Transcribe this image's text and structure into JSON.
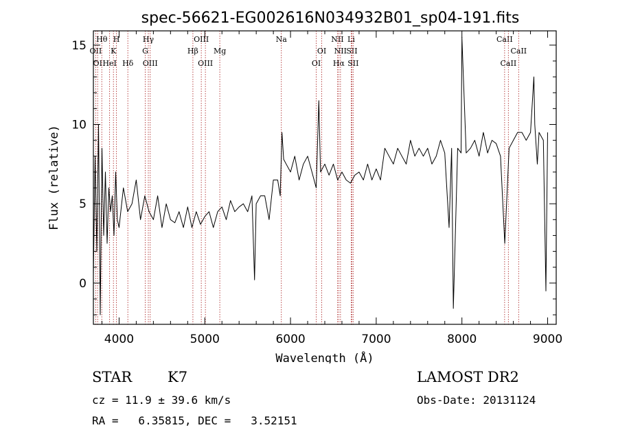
{
  "chart_data": {
    "type": "line",
    "title": "spec-56621-EG002616N034932B01_sp04-191.fits",
    "xlabel": "Wavelength (Å)",
    "ylabel": "Flux (relative)",
    "xlim": [
      3700,
      9100
    ],
    "ylim": [
      -2.6,
      15.9
    ],
    "xticks": [
      4000,
      5000,
      6000,
      7000,
      8000,
      9000
    ],
    "yticks": [
      0,
      5,
      10,
      15
    ],
    "grid": false,
    "series": [
      {
        "x": [
          3700,
          3720,
          3740,
          3760,
          3780,
          3800,
          3820,
          3840,
          3860,
          3880,
          3900,
          3920,
          3940,
          3960,
          3980,
          4000,
          4050,
          4100,
          4150,
          4200,
          4250,
          4300,
          4350,
          4400,
          4450,
          4500,
          4550,
          4600,
          4650,
          4700,
          4750,
          4800,
          4850,
          4900,
          4950,
          5000,
          5050,
          5100,
          5150,
          5200,
          5250,
          5300,
          5350,
          5400,
          5450,
          5500,
          5550,
          5580,
          5600,
          5650,
          5700,
          5750,
          5800,
          5850,
          5880,
          5900,
          5920,
          5950,
          6000,
          6050,
          6100,
          6150,
          6200,
          6250,
          6300,
          6330,
          6350,
          6400,
          6450,
          6500,
          6550,
          6600,
          6650,
          6700,
          6750,
          6800,
          6850,
          6900,
          6950,
          7000,
          7050,
          7100,
          7150,
          7200,
          7250,
          7300,
          7350,
          7400,
          7450,
          7500,
          7550,
          7600,
          7650,
          7700,
          7750,
          7800,
          7850,
          7880,
          7900,
          7950,
          7990,
          8000,
          8050,
          8100,
          8150,
          8200,
          8250,
          8300,
          8350,
          8400,
          8450,
          8500,
          8550,
          8600,
          8650,
          8700,
          8750,
          8800,
          8840,
          8850,
          8880,
          8900,
          8950,
          8980,
          9000
        ],
        "y": [
          0.5,
          8,
          2,
          10,
          -2,
          8.5,
          3,
          7,
          2.5,
          6,
          4.5,
          5.5,
          3,
          7,
          4,
          3.5,
          6,
          4.5,
          5,
          6.5,
          4,
          5.5,
          4.5,
          4,
          5.5,
          3.5,
          5,
          4,
          3.8,
          4.5,
          3.5,
          4.8,
          3.5,
          4.5,
          3.7,
          4.2,
          4.5,
          3.5,
          4.5,
          4.8,
          4,
          5.2,
          4.5,
          4.8,
          5,
          4.5,
          5.5,
          0.2,
          5,
          5.5,
          5.5,
          4,
          6.5,
          6.5,
          5.5,
          9.5,
          7.8,
          7.5,
          7,
          8,
          6.5,
          7.5,
          8,
          7,
          6,
          11.5,
          7,
          7.5,
          6.8,
          7.5,
          6.5,
          7,
          6.5,
          6.3,
          6.8,
          7,
          6.5,
          7.5,
          6.5,
          7.2,
          6.5,
          8.5,
          8,
          7.5,
          8.5,
          8,
          7.5,
          9,
          8,
          8.5,
          8,
          8.5,
          7.5,
          8,
          9,
          8.2,
          3.5,
          8.5,
          -1.6,
          8.5,
          8.2,
          15.5,
          8.2,
          8.5,
          9,
          8,
          9.5,
          8.2,
          9,
          8.8,
          8,
          2.5,
          8.5,
          9,
          9.5,
          9.5,
          9,
          9.5,
          13,
          10,
          7.5,
          9.5,
          9,
          -0.5,
          9.5
        ]
      }
    ],
    "lines": [
      {
        "wavelength": 3727,
        "labels": [
          {
            "text": "OII",
            "row": 2
          }
        ]
      },
      {
        "wavelength": 3750,
        "labels": [
          {
            "text": "OI",
            "row": 3
          }
        ]
      },
      {
        "wavelength": 3798,
        "labels": [
          {
            "text": "Hθ",
            "row": 1
          }
        ]
      },
      {
        "wavelength": 3889,
        "labels": [
          {
            "text": "HeI",
            "row": 3
          }
        ]
      },
      {
        "wavelength": 3934,
        "labels": [
          {
            "text": "K",
            "row": 2
          }
        ]
      },
      {
        "wavelength": 3969,
        "labels": [
          {
            "text": "H",
            "row": 1
          }
        ]
      },
      {
        "wavelength": 4102,
        "labels": [
          {
            "text": "Hδ",
            "row": 3
          }
        ]
      },
      {
        "wavelength": 4305,
        "labels": [
          {
            "text": "G",
            "row": 2
          }
        ]
      },
      {
        "wavelength": 4341,
        "labels": [
          {
            "text": "Hγ",
            "row": 1
          }
        ]
      },
      {
        "wavelength": 4363,
        "labels": [
          {
            "text": "OIII",
            "row": 3
          }
        ]
      },
      {
        "wavelength": 4861,
        "labels": [
          {
            "text": "Hβ",
            "row": 2
          }
        ]
      },
      {
        "wavelength": 4959,
        "labels": [
          {
            "text": "OIII",
            "row": 1
          }
        ]
      },
      {
        "wavelength": 5007,
        "labels": [
          {
            "text": "OIII",
            "row": 3
          }
        ]
      },
      {
        "wavelength": 5175,
        "labels": [
          {
            "text": "Mg",
            "row": 2
          }
        ]
      },
      {
        "wavelength": 5893,
        "labels": [
          {
            "text": "Na",
            "row": 1
          }
        ]
      },
      {
        "wavelength": 6300,
        "labels": [
          {
            "text": "OI",
            "row": 3
          }
        ]
      },
      {
        "wavelength": 6364,
        "labels": [
          {
            "text": "OI",
            "row": 2
          }
        ]
      },
      {
        "wavelength": 6548,
        "labels": [
          {
            "text": "NII",
            "row": 1
          }
        ]
      },
      {
        "wavelength": 6563,
        "labels": [
          {
            "text": "Hα",
            "row": 3
          }
        ]
      },
      {
        "wavelength": 6583,
        "labels": [
          {
            "text": "NII",
            "row": 2
          }
        ]
      },
      {
        "wavelength": 6708,
        "labels": [
          {
            "text": "Li",
            "row": 1
          }
        ]
      },
      {
        "wavelength": 6716,
        "labels": [
          {
            "text": "SII",
            "row": 2
          }
        ]
      },
      {
        "wavelength": 6731,
        "labels": [
          {
            "text": "SII",
            "row": 3
          }
        ]
      },
      {
        "wavelength": 8498,
        "labels": [
          {
            "text": "CaII",
            "row": 1
          }
        ]
      },
      {
        "wavelength": 8542,
        "labels": [
          {
            "text": "CaII",
            "row": 3
          }
        ]
      },
      {
        "wavelength": 8662,
        "labels": [
          {
            "text": "CaII",
            "row": 2
          }
        ]
      }
    ]
  },
  "info": {
    "object_class": "STAR",
    "subclass": "K7",
    "survey": "LAMOST DR2",
    "cz": "cz = 11.9 ± 39.6 km/s",
    "obs_date": "Obs-Date: 20131124",
    "coords": "RA =   6.35815, DEC =   3.52151"
  },
  "colors": {
    "spectrum": "#000000",
    "line_marker": "#b03030",
    "axis": "#000000"
  }
}
